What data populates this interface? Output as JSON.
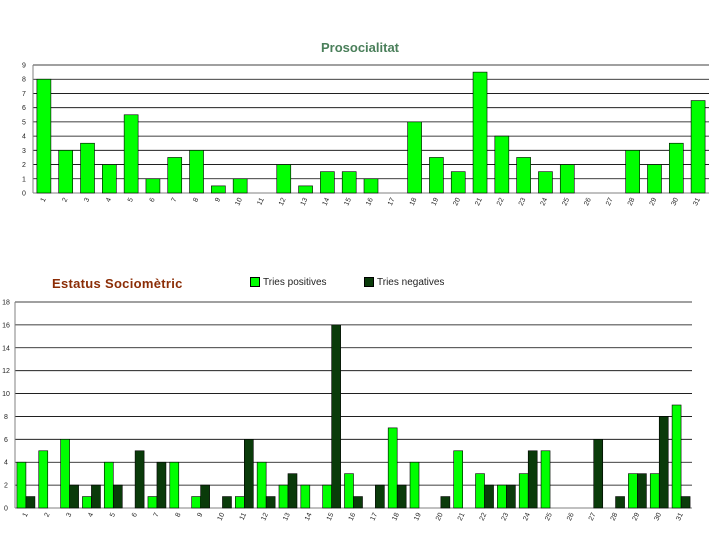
{
  "colors": {
    "green": "#00ff00",
    "dark": "#0a3b0a",
    "grid": "#000000"
  },
  "chart_data": [
    {
      "type": "bar",
      "title": "Prosocialitat",
      "categories": [
        "1",
        "2",
        "3",
        "4",
        "5",
        "6",
        "7",
        "8",
        "9",
        "10",
        "11",
        "12",
        "13",
        "14",
        "15",
        "16",
        "17",
        "18",
        "19",
        "20",
        "21",
        "22",
        "23",
        "24",
        "25",
        "26",
        "27",
        "28",
        "29",
        "30",
        "31"
      ],
      "series": [
        {
          "values": [
            8,
            3,
            3.5,
            2,
            5.5,
            1,
            2.5,
            3,
            0.5,
            1,
            0,
            2,
            0.5,
            1.5,
            1.5,
            1,
            0,
            5,
            2.5,
            1.5,
            8.5,
            4,
            2.5,
            1.5,
            2,
            0,
            0,
            3,
            2,
            3.5,
            6.5
          ]
        }
      ],
      "ylim": [
        0,
        9
      ],
      "yticks": [
        "0",
        "1",
        "2",
        "3",
        "4",
        "5",
        "6",
        "7",
        "8",
        "9"
      ],
      "grid": true
    },
    {
      "type": "bar",
      "title": "Estatus Sociomètric",
      "categories": [
        "1",
        "2",
        "3",
        "4",
        "5",
        "6",
        "7",
        "8",
        "9",
        "10",
        "11",
        "12",
        "13",
        "14",
        "15",
        "16",
        "17",
        "18",
        "19",
        "20",
        "21",
        "22",
        "23",
        "24",
        "25",
        "26",
        "27",
        "28",
        "29",
        "30",
        "31"
      ],
      "series": [
        {
          "name": "Tries positives",
          "values": [
            4,
            5,
            6,
            1,
            4,
            0,
            1,
            4,
            1,
            0,
            1,
            4,
            2,
            2,
            2,
            3,
            0,
            7,
            4,
            0,
            5,
            3,
            2,
            3,
            5,
            0,
            0,
            0,
            3,
            3,
            9
          ]
        },
        {
          "name": "Tries negatives",
          "values": [
            1,
            0,
            2,
            2,
            2,
            5,
            4,
            0,
            2,
            1,
            6,
            1,
            3,
            0,
            16,
            1,
            2,
            2,
            0,
            1,
            0,
            2,
            2,
            5,
            0,
            0,
            6,
            1,
            3,
            8,
            1
          ]
        }
      ],
      "ylim": [
        0,
        18
      ],
      "yticks": [
        "0",
        "2",
        "4",
        "6",
        "8",
        "10",
        "12",
        "14",
        "16",
        "18"
      ],
      "legend": "top",
      "grid": true
    }
  ]
}
